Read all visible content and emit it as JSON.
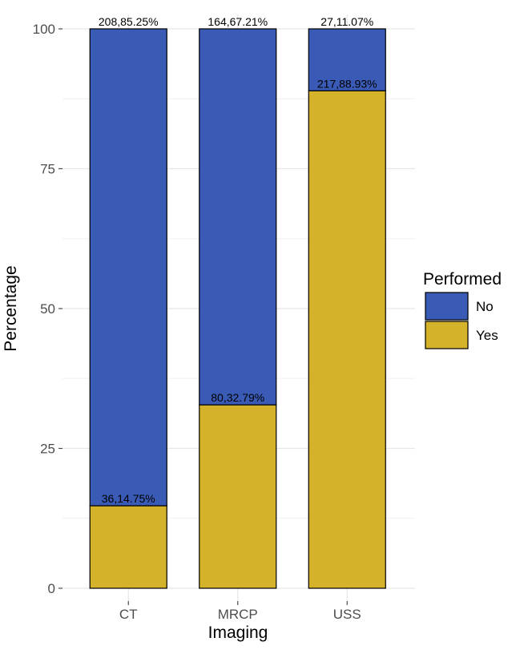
{
  "chart_data": {
    "type": "bar",
    "stacked": true,
    "categories": [
      "CT",
      "MRCP",
      "USS"
    ],
    "xlabel": "Imaging",
    "ylabel": "Percentage",
    "ylim": [
      0,
      100
    ],
    "yticks": [
      0,
      25,
      50,
      75,
      100
    ],
    "grid": true,
    "legend": {
      "title": "Performed",
      "placement": "right",
      "entries": [
        "No",
        "Yes"
      ]
    },
    "series": [
      {
        "name": "Yes",
        "color": "#D4B32A",
        "values": [
          14.75,
          32.79,
          88.93
        ],
        "labels": [
          "36,14.75%",
          "80,32.79%",
          "217,88.93%"
        ]
      },
      {
        "name": "No",
        "color": "#3A5BB5",
        "values": [
          85.25,
          67.21,
          11.07
        ],
        "labels": [
          "208,85.25%",
          "164,67.21%",
          "27,11.07%"
        ]
      }
    ]
  }
}
